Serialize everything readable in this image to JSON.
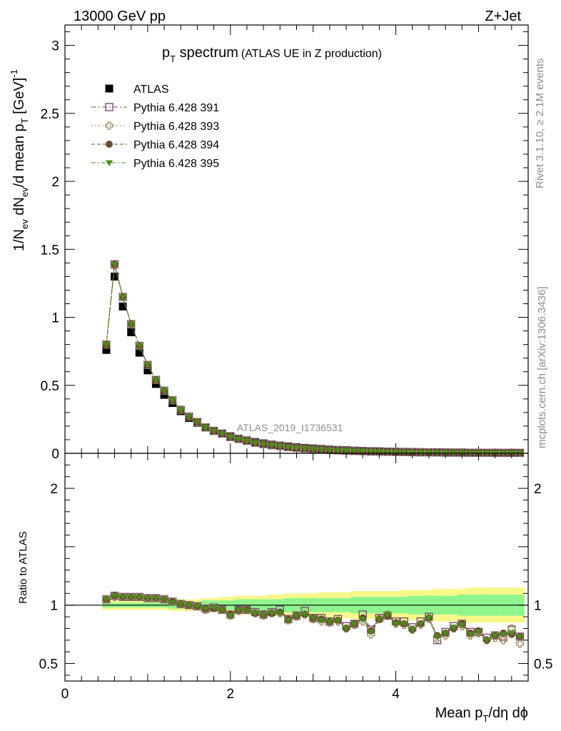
{
  "header": {
    "energy": "13000 GeV pp",
    "process": "Z+Jet"
  },
  "side_labels": {
    "rivet": "Rivet 3.1.10, ≥ 2.1M events",
    "mcplots": "mcplots.cern.ch [arXiv:1306.3436]"
  },
  "chart_data": [
    {
      "type": "scatter",
      "title_main": "p",
      "title_sub": "T",
      "title_rest": " spectrum",
      "title_extra": "(ATLAS UE in Z production)",
      "analysis_tag": "ATLAS_2019_I1736531",
      "ylabel": "1/N_ev dN_ev/d mean p_T [GeV]^-1",
      "xlim": [
        0,
        5.6
      ],
      "ylim": [
        0,
        3.15
      ],
      "xticks": [
        0,
        2,
        4
      ],
      "yticks": [
        0,
        0.5,
        1,
        1.5,
        2,
        2.5,
        3
      ],
      "ytick_labels": [
        "0",
        "0.5",
        "1",
        "1.5",
        "2",
        "2.5",
        "3"
      ],
      "x": [
        0.5,
        0.6,
        0.7,
        0.8,
        0.9,
        1.0,
        1.1,
        1.2,
        1.3,
        1.4,
        1.5,
        1.6,
        1.7,
        1.8,
        1.9,
        2.0,
        2.1,
        2.2,
        2.3,
        2.4,
        2.5,
        2.6,
        2.7,
        2.8,
        2.9,
        3.0,
        3.1,
        3.2,
        3.3,
        3.4,
        3.5,
        3.6,
        3.7,
        3.8,
        3.9,
        4.0,
        4.1,
        4.2,
        4.3,
        4.4,
        4.5,
        4.6,
        4.7,
        4.8,
        4.9,
        5.0,
        5.1,
        5.2,
        5.3,
        5.4,
        5.5
      ],
      "series": [
        {
          "name": "ATLAS",
          "color": "#000000",
          "marker": "square-filled",
          "values": [
            0.76,
            1.3,
            1.08,
            0.89,
            0.74,
            0.61,
            0.51,
            0.43,
            0.37,
            0.31,
            0.26,
            0.225,
            0.19,
            0.165,
            0.145,
            0.125,
            0.108,
            0.095,
            0.083,
            0.073,
            0.064,
            0.057,
            0.051,
            0.045,
            0.04,
            0.036,
            0.032,
            0.028,
            0.025,
            0.023,
            0.02,
            0.018,
            0.016,
            0.015,
            0.013,
            0.012,
            0.011,
            0.01,
            0.009,
            0.008,
            0.008,
            0.007,
            0.006,
            0.006,
            0.005,
            0.005,
            0.005,
            0.004,
            0.004,
            0.004,
            0.004
          ]
        },
        {
          "name": "Pythia 6.428 391",
          "color": "#7a4f6d",
          "marker": "square-open",
          "values": [
            0.8,
            1.39,
            1.15,
            0.95,
            0.79,
            0.65,
            0.54,
            0.46,
            0.39,
            0.32,
            0.27,
            0.23,
            0.19,
            0.165,
            0.145,
            0.12,
            0.106,
            0.092,
            0.078,
            0.068,
            0.06,
            0.054,
            0.046,
            0.041,
            0.036,
            0.032,
            0.028,
            0.025,
            0.022,
            0.019,
            0.017,
            0.016,
            0.013,
            0.013,
            0.011,
            0.01,
            0.009,
            0.008,
            0.007,
            0.007,
            0.006,
            0.005,
            0.005,
            0.005,
            0.004,
            0.004,
            0.004,
            0.003,
            0.003,
            0.003,
            0.003
          ]
        },
        {
          "name": "Pythia 6.428 393",
          "color": "#9b8a5c",
          "marker": "cross-open",
          "values": [
            0.8,
            1.38,
            1.15,
            0.95,
            0.79,
            0.65,
            0.54,
            0.46,
            0.39,
            0.32,
            0.27,
            0.23,
            0.19,
            0.165,
            0.145,
            0.12,
            0.105,
            0.092,
            0.078,
            0.067,
            0.06,
            0.053,
            0.045,
            0.04,
            0.036,
            0.031,
            0.027,
            0.024,
            0.021,
            0.019,
            0.017,
            0.015,
            0.013,
            0.012,
            0.011,
            0.01,
            0.009,
            0.008,
            0.007,
            0.007,
            0.006,
            0.005,
            0.005,
            0.005,
            0.004,
            0.004,
            0.004,
            0.003,
            0.003,
            0.003,
            0.003
          ]
        },
        {
          "name": "Pythia 6.428 394",
          "color": "#6b4a2e",
          "marker": "circle-filled",
          "values": [
            0.8,
            1.39,
            1.15,
            0.95,
            0.79,
            0.65,
            0.54,
            0.46,
            0.39,
            0.32,
            0.27,
            0.23,
            0.19,
            0.165,
            0.145,
            0.12,
            0.105,
            0.092,
            0.078,
            0.068,
            0.06,
            0.053,
            0.046,
            0.041,
            0.036,
            0.032,
            0.028,
            0.025,
            0.021,
            0.019,
            0.017,
            0.015,
            0.013,
            0.013,
            0.011,
            0.01,
            0.009,
            0.008,
            0.007,
            0.007,
            0.006,
            0.005,
            0.005,
            0.005,
            0.004,
            0.004,
            0.004,
            0.003,
            0.003,
            0.003,
            0.003
          ]
        },
        {
          "name": "Pythia 6.428 395",
          "color": "#4d8a1c",
          "marker": "triangle-down-filled",
          "values": [
            0.8,
            1.39,
            1.15,
            0.95,
            0.79,
            0.65,
            0.54,
            0.46,
            0.39,
            0.32,
            0.27,
            0.23,
            0.19,
            0.165,
            0.145,
            0.12,
            0.105,
            0.092,
            0.078,
            0.068,
            0.06,
            0.053,
            0.046,
            0.041,
            0.036,
            0.032,
            0.028,
            0.025,
            0.021,
            0.019,
            0.017,
            0.015,
            0.013,
            0.013,
            0.011,
            0.01,
            0.009,
            0.008,
            0.007,
            0.007,
            0.006,
            0.005,
            0.005,
            0.005,
            0.004,
            0.004,
            0.004,
            0.003,
            0.003,
            0.003,
            0.003
          ]
        }
      ],
      "legend_position": "top-left"
    },
    {
      "type": "scatter",
      "ylabel": "Ratio to ATLAS",
      "xlabel": "Mean p_T/dη dϕ",
      "xlim": [
        0,
        5.6
      ],
      "ylim": [
        0.35,
        2.3
      ],
      "yticks": [
        0.5,
        1,
        2
      ],
      "ytick_labels": [
        "0.5",
        "1",
        "2"
      ],
      "xtick_labels": [
        "0",
        "2",
        "4"
      ],
      "reference_line": 1,
      "band_inner_color": "#8ef58e",
      "band_outer_color": "#f7f78a",
      "band_inner_halfwidth": [
        0.02,
        0.02,
        0.02,
        0.02,
        0.02,
        0.02,
        0.02,
        0.02,
        0.03,
        0.03,
        0.03,
        0.03,
        0.04,
        0.04,
        0.04,
        0.04,
        0.05,
        0.05,
        0.05,
        0.05,
        0.05,
        0.05,
        0.06,
        0.06,
        0.06,
        0.06,
        0.06,
        0.06,
        0.06,
        0.06,
        0.07,
        0.07,
        0.07,
        0.07,
        0.07,
        0.07,
        0.07,
        0.08,
        0.08,
        0.08,
        0.08,
        0.08,
        0.08,
        0.09,
        0.09,
        0.09,
        0.09,
        0.09,
        0.09,
        0.09,
        0.09
      ],
      "band_outer_halfwidth": [
        0.04,
        0.04,
        0.04,
        0.04,
        0.04,
        0.04,
        0.04,
        0.04,
        0.05,
        0.05,
        0.05,
        0.05,
        0.06,
        0.06,
        0.07,
        0.07,
        0.08,
        0.08,
        0.08,
        0.08,
        0.09,
        0.09,
        0.1,
        0.1,
        0.1,
        0.1,
        0.11,
        0.11,
        0.11,
        0.11,
        0.12,
        0.12,
        0.12,
        0.12,
        0.12,
        0.12,
        0.13,
        0.13,
        0.13,
        0.13,
        0.14,
        0.14,
        0.14,
        0.14,
        0.15,
        0.15,
        0.15,
        0.15,
        0.15,
        0.15,
        0.15
      ],
      "series": [
        {
          "name": "Pythia 6.428 391",
          "values": [
            1.05,
            1.08,
            1.07,
            1.07,
            1.07,
            1.06,
            1.06,
            1.05,
            1.03,
            1.01,
            1.0,
            0.99,
            0.97,
            0.98,
            0.96,
            0.92,
            0.96,
            0.96,
            0.94,
            0.92,
            0.94,
            0.96,
            0.88,
            0.91,
            0.95,
            0.89,
            0.89,
            0.86,
            0.88,
            0.82,
            0.84,
            0.92,
            0.79,
            0.89,
            0.91,
            0.86,
            0.86,
            0.81,
            0.86,
            0.9,
            0.7,
            0.77,
            0.82,
            0.84,
            0.77,
            0.77,
            0.72,
            0.74,
            0.73,
            0.79,
            0.73
          ]
        },
        {
          "name": "Pythia 6.428 393",
          "values": [
            1.05,
            1.07,
            1.07,
            1.07,
            1.07,
            1.06,
            1.06,
            1.05,
            1.03,
            1.01,
            1.0,
            0.99,
            0.96,
            0.98,
            0.96,
            0.91,
            0.95,
            0.96,
            0.93,
            0.91,
            0.93,
            0.93,
            0.87,
            0.9,
            0.92,
            0.88,
            0.86,
            0.85,
            0.86,
            0.8,
            0.83,
            0.86,
            0.75,
            0.88,
            0.92,
            0.84,
            0.83,
            0.79,
            0.83,
            0.88,
            0.71,
            0.74,
            0.8,
            0.82,
            0.74,
            0.76,
            0.7,
            0.72,
            0.7,
            0.8,
            0.67
          ]
        },
        {
          "name": "Pythia 6.428 394",
          "values": [
            1.05,
            1.08,
            1.07,
            1.07,
            1.07,
            1.06,
            1.06,
            1.05,
            1.03,
            1.01,
            1.0,
            0.99,
            0.97,
            0.97,
            0.96,
            0.92,
            0.96,
            0.96,
            0.93,
            0.92,
            0.93,
            0.94,
            0.88,
            0.91,
            0.92,
            0.89,
            0.88,
            0.86,
            0.87,
            0.8,
            0.84,
            0.89,
            0.78,
            0.88,
            0.91,
            0.85,
            0.84,
            0.79,
            0.84,
            0.89,
            0.74,
            0.76,
            0.8,
            0.84,
            0.76,
            0.78,
            0.7,
            0.74,
            0.76,
            0.75,
            0.73
          ]
        },
        {
          "name": "Pythia 6.428 395",
          "values": [
            1.05,
            1.08,
            1.07,
            1.07,
            1.07,
            1.06,
            1.06,
            1.05,
            1.02,
            1.01,
            1.0,
            0.99,
            0.97,
            0.98,
            0.96,
            0.91,
            0.96,
            0.95,
            0.93,
            0.92,
            0.93,
            0.93,
            0.87,
            0.91,
            0.92,
            0.89,
            0.87,
            0.86,
            0.87,
            0.8,
            0.84,
            0.88,
            0.77,
            0.88,
            0.92,
            0.84,
            0.84,
            0.79,
            0.84,
            0.89,
            0.73,
            0.76,
            0.81,
            0.83,
            0.75,
            0.77,
            0.7,
            0.74,
            0.75,
            0.76,
            0.73
          ]
        }
      ]
    }
  ]
}
